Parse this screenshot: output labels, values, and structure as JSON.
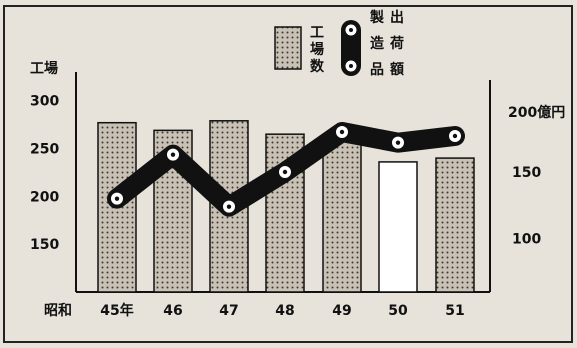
{
  "chart_data": {
    "type": "bar",
    "categories": [
      "45年",
      "46",
      "47",
      "48",
      "49",
      "50",
      "51"
    ],
    "x_prefix": "昭和",
    "left_axis": {
      "label": "工場",
      "ticks": [
        "300",
        "250",
        "200",
        "150"
      ],
      "ylim": [
        100,
        330
      ]
    },
    "right_axis": {
      "label": "200億円",
      "ticks": [
        "150",
        "100"
      ],
      "ylim": [
        60,
        225
      ]
    },
    "series": [
      {
        "name": "工場数",
        "kind": "bar",
        "axis": "left",
        "values": [
          277,
          269,
          279,
          265,
          260,
          236,
          240
        ],
        "hatched": [
          true,
          true,
          true,
          true,
          true,
          false,
          true
        ]
      },
      {
        "name": "製造出荷品額",
        "kind": "line",
        "axis": "right",
        "values": [
          130,
          163,
          124,
          150,
          180,
          172,
          177
        ]
      }
    ],
    "legend_placement": "top-right",
    "grid": false,
    "colors": {
      "bar_fill": "#c9c1b3",
      "bar_dots": "#3a3a3a",
      "line": "#111111",
      "marker": "#ffffff",
      "background": "#e7e3db"
    }
  }
}
